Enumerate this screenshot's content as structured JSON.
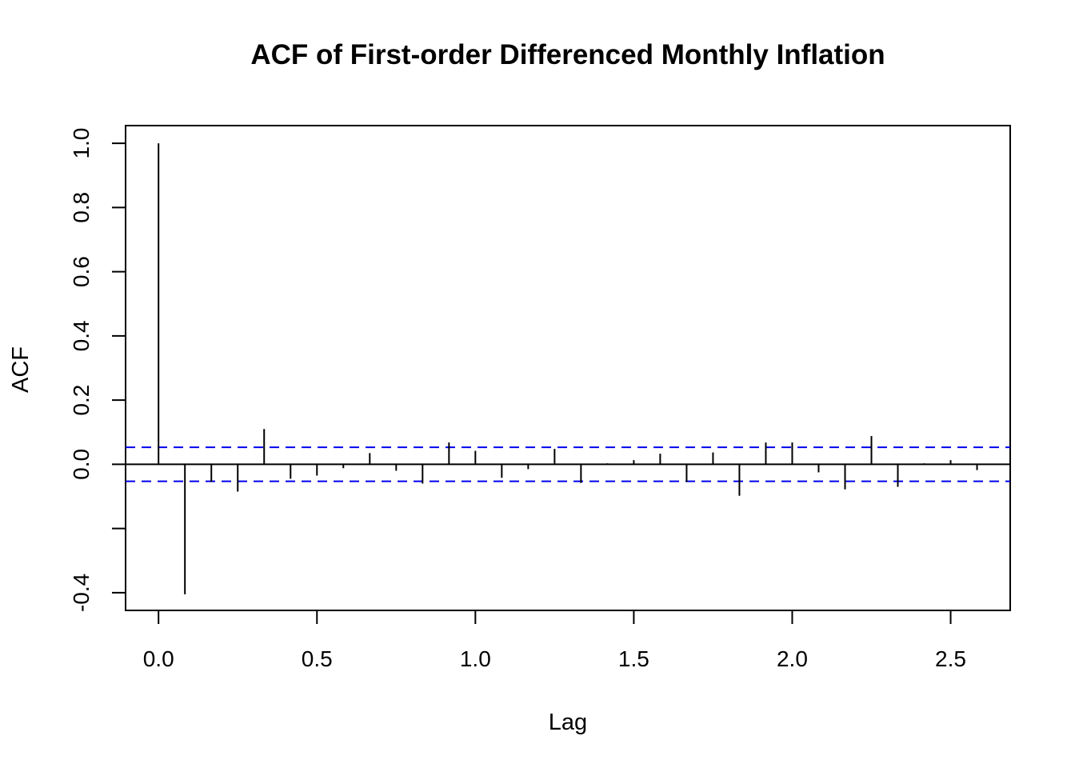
{
  "chart_data": {
    "type": "bar",
    "title": "ACF of First-order Differenced Monthly Inflation",
    "xlabel": "Lag",
    "ylabel": "ACF",
    "xlim": [
      -0.104,
      2.688
    ],
    "ylim": [
      -0.455,
      1.055
    ],
    "x_ticks": [
      0.0,
      0.5,
      1.0,
      1.5,
      2.0,
      2.5
    ],
    "x_tick_labels": [
      "0.0",
      "0.5",
      "1.0",
      "1.5",
      "2.0",
      "2.5"
    ],
    "y_ticks": [
      -0.4,
      -0.2,
      0.0,
      0.2,
      0.4,
      0.6,
      0.8,
      1.0
    ],
    "y_tick_labels": [
      "-0.4",
      "",
      "0.0",
      "0.2",
      "0.4",
      "0.6",
      "0.8",
      "1.0"
    ],
    "grid": false,
    "legend": "none",
    "confidence_bound": 0.053,
    "colors": {
      "bars": "#000000",
      "confidence_lines": "#0000ee",
      "zero_line": "#000000",
      "frame": "#000000"
    },
    "series": [
      {
        "x": [
          0.0,
          0.0833,
          0.1667,
          0.25,
          0.3333,
          0.4167,
          0.5,
          0.5833,
          0.6667,
          0.75,
          0.8333,
          0.9167,
          1.0,
          1.0833,
          1.1667,
          1.25,
          1.3333,
          1.4167,
          1.5,
          1.5833,
          1.6667,
          1.75,
          1.8333,
          1.9167,
          2.0,
          2.0833,
          2.1667,
          2.25,
          2.3333,
          2.4167,
          2.5,
          2.5833
        ],
        "values": [
          1.0,
          -0.405,
          -0.055,
          -0.085,
          0.11,
          -0.045,
          -0.035,
          -0.012,
          0.035,
          -0.02,
          -0.06,
          0.068,
          0.042,
          -0.042,
          -0.015,
          0.048,
          -0.058,
          0.003,
          0.013,
          0.033,
          -0.055,
          0.037,
          -0.098,
          0.068,
          0.068,
          -0.025,
          -0.078,
          0.088,
          -0.07,
          0.003,
          0.013,
          -0.018
        ]
      }
    ]
  }
}
